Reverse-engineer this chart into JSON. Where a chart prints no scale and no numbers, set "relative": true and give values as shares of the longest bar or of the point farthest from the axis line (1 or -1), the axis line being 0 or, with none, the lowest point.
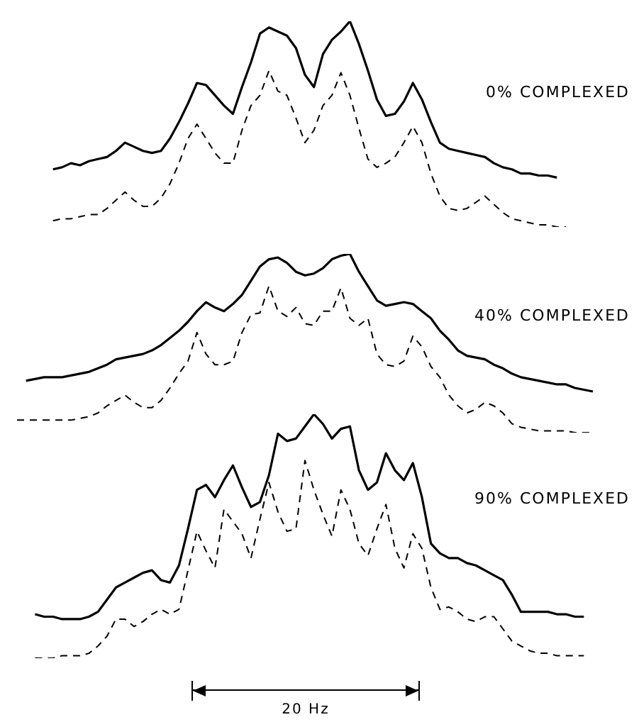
{
  "chart_data": [
    {
      "type": "line",
      "title": "0% COMPLEXED",
      "relative": true,
      "marker": "none",
      "categories": [
        null,
        null,
        null,
        null,
        null,
        null,
        null,
        null,
        null,
        null,
        null,
        null,
        null,
        null,
        null,
        null,
        null,
        null,
        null,
        null,
        null,
        null,
        null,
        null,
        null,
        null,
        null,
        null,
        null,
        null,
        null,
        null,
        null,
        null,
        null,
        null,
        null,
        null,
        null,
        null,
        null,
        null,
        null,
        null,
        null,
        null,
        null,
        null,
        null,
        null,
        null,
        null,
        null,
        null,
        null,
        null,
        null,
        null,
        null,
        null,
        null,
        null,
        null,
        null,
        null
      ],
      "series": [
        {
          "color": "#000000",
          "line_style": "solid",
          "values": [
            null,
            null,
            null,
            null,
            0.28,
            0.29,
            0.31,
            0.3,
            0.32,
            0.33,
            0.34,
            0.37,
            0.41,
            0.39,
            0.37,
            0.36,
            0.37,
            0.43,
            0.51,
            0.6,
            0.7,
            0.69,
            0.64,
            0.59,
            0.55,
            0.68,
            0.8,
            0.94,
            0.97,
            0.95,
            0.93,
            0.87,
            0.74,
            0.68,
            0.84,
            0.91,
            0.95,
            1.0,
            0.89,
            0.76,
            0.62,
            0.54,
            0.55,
            0.61,
            0.7,
            0.62,
            0.51,
            0.41,
            0.38,
            0.37,
            0.36,
            0.35,
            0.34,
            0.31,
            0.29,
            0.28,
            0.26,
            0.26,
            0.25,
            0.25,
            0.24,
            null,
            null,
            null,
            null
          ]
        },
        {
          "color": "#000000",
          "line_style": "dashed",
          "values": [
            null,
            null,
            null,
            null,
            0.03,
            0.04,
            0.04,
            0.05,
            0.06,
            0.06,
            0.09,
            0.13,
            0.17,
            0.13,
            0.1,
            0.1,
            0.14,
            0.21,
            0.31,
            0.43,
            0.5,
            0.43,
            0.36,
            0.31,
            0.31,
            0.47,
            0.59,
            0.64,
            0.76,
            0.66,
            0.64,
            0.53,
            0.41,
            0.47,
            0.59,
            0.64,
            0.75,
            0.64,
            0.48,
            0.33,
            0.29,
            0.31,
            0.34,
            0.41,
            0.49,
            0.41,
            0.26,
            0.15,
            0.09,
            0.08,
            0.09,
            0.12,
            0.15,
            0.11,
            0.07,
            0.04,
            0.03,
            0.02,
            0.01,
            0.01,
            0.0,
            0.0,
            null,
            null,
            null
          ]
        }
      ]
    },
    {
      "type": "line",
      "title": "40% COMPLEXED",
      "relative": true,
      "marker": "none",
      "categories": [
        null,
        null,
        null,
        null,
        null,
        null,
        null,
        null,
        null,
        null,
        null,
        null,
        null,
        null,
        null,
        null,
        null,
        null,
        null,
        null,
        null,
        null,
        null,
        null,
        null,
        null,
        null,
        null,
        null,
        null,
        null,
        null,
        null,
        null,
        null,
        null,
        null,
        null,
        null,
        null,
        null,
        null,
        null,
        null,
        null,
        null,
        null,
        null,
        null,
        null,
        null,
        null,
        null,
        null,
        null,
        null,
        null,
        null,
        null,
        null,
        null,
        null,
        null,
        null,
        null
      ],
      "series": [
        {
          "color": "#000000",
          "line_style": "solid",
          "values": [
            null,
            0.29,
            0.3,
            0.31,
            0.31,
            0.31,
            0.32,
            0.33,
            0.34,
            0.36,
            0.38,
            0.41,
            0.42,
            0.43,
            0.44,
            0.46,
            0.49,
            0.53,
            0.57,
            0.62,
            0.68,
            0.73,
            0.7,
            0.68,
            0.72,
            0.77,
            0.85,
            0.93,
            0.97,
            0.98,
            0.95,
            0.9,
            0.88,
            0.89,
            0.92,
            0.97,
            0.99,
            1.0,
            0.9,
            0.82,
            0.74,
            0.71,
            0.72,
            0.73,
            0.72,
            0.68,
            0.64,
            0.57,
            0.52,
            0.46,
            0.43,
            0.42,
            0.41,
            0.38,
            0.36,
            0.33,
            0.31,
            0.3,
            0.29,
            0.28,
            0.27,
            0.27,
            0.25,
            0.24,
            0.23
          ]
        },
        {
          "color": "#000000",
          "line_style": "dashed",
          "values": [
            0.07,
            0.07,
            0.07,
            0.07,
            0.07,
            0.07,
            0.07,
            0.08,
            0.09,
            0.11,
            0.15,
            0.18,
            0.21,
            0.17,
            0.14,
            0.14,
            0.18,
            0.25,
            0.33,
            0.4,
            0.56,
            0.44,
            0.38,
            0.38,
            0.4,
            0.56,
            0.66,
            0.67,
            0.82,
            0.68,
            0.65,
            0.7,
            0.61,
            0.6,
            0.68,
            0.68,
            0.81,
            0.64,
            0.6,
            0.64,
            0.44,
            0.38,
            0.37,
            0.4,
            0.54,
            0.48,
            0.37,
            0.31,
            0.21,
            0.15,
            0.11,
            0.13,
            0.17,
            0.15,
            0.11,
            0.05,
            0.03,
            0.02,
            0.01,
            0.01,
            0.01,
            0.01,
            0.0,
            0.0,
            0.0
          ]
        }
      ]
    },
    {
      "type": "line",
      "title": "90% COMPLEXED",
      "relative": true,
      "marker": "none",
      "annotations": [
        "20 Hz"
      ],
      "categories": [
        null,
        null,
        null,
        null,
        null,
        null,
        null,
        null,
        null,
        null,
        null,
        null,
        null,
        null,
        null,
        null,
        null,
        null,
        null,
        null,
        null,
        null,
        null,
        null,
        null,
        null,
        null,
        null,
        null,
        null,
        null,
        null,
        null,
        null,
        null,
        null,
        null,
        null,
        null,
        null,
        null,
        null,
        null,
        null,
        null,
        null,
        null,
        null,
        null,
        null,
        null,
        null,
        null,
        null,
        null,
        null,
        null,
        null,
        null,
        null,
        null,
        null,
        null,
        null,
        null
      ],
      "series": [
        {
          "color": "#000000",
          "line_style": "solid",
          "values": [
            null,
            null,
            0.18,
            0.17,
            0.17,
            0.16,
            0.16,
            0.16,
            0.17,
            0.19,
            0.24,
            0.29,
            0.31,
            0.33,
            0.35,
            0.36,
            0.32,
            0.31,
            0.38,
            0.53,
            0.69,
            0.71,
            0.66,
            0.73,
            0.79,
            0.7,
            0.62,
            0.64,
            0.75,
            0.92,
            0.89,
            0.9,
            0.95,
            1.0,
            0.96,
            0.9,
            0.94,
            0.95,
            0.77,
            0.69,
            0.72,
            0.84,
            0.77,
            0.73,
            0.8,
            0.66,
            0.47,
            0.43,
            0.41,
            0.41,
            0.39,
            0.38,
            0.36,
            0.34,
            0.32,
            0.26,
            0.19,
            0.19,
            0.19,
            0.19,
            0.18,
            0.18,
            0.17,
            0.17,
            null
          ]
        },
        {
          "color": "#000000",
          "line_style": "dashed",
          "values": [
            null,
            null,
            0.0,
            0.0,
            0.0,
            0.01,
            0.01,
            0.01,
            0.02,
            0.05,
            0.09,
            0.16,
            0.16,
            0.13,
            0.15,
            0.18,
            0.2,
            0.18,
            0.2,
            0.36,
            0.52,
            0.44,
            0.37,
            0.61,
            0.56,
            0.51,
            0.41,
            0.57,
            0.72,
            0.6,
            0.52,
            0.53,
            0.81,
            0.69,
            0.59,
            0.5,
            0.69,
            0.61,
            0.47,
            0.42,
            0.53,
            0.63,
            0.45,
            0.37,
            0.51,
            0.45,
            0.29,
            0.2,
            0.21,
            0.19,
            0.16,
            0.15,
            0.17,
            0.17,
            0.12,
            0.07,
            0.05,
            0.03,
            0.02,
            0.02,
            0.01,
            0.01,
            0.01,
            0.01,
            null
          ]
        }
      ]
    }
  ]
}
